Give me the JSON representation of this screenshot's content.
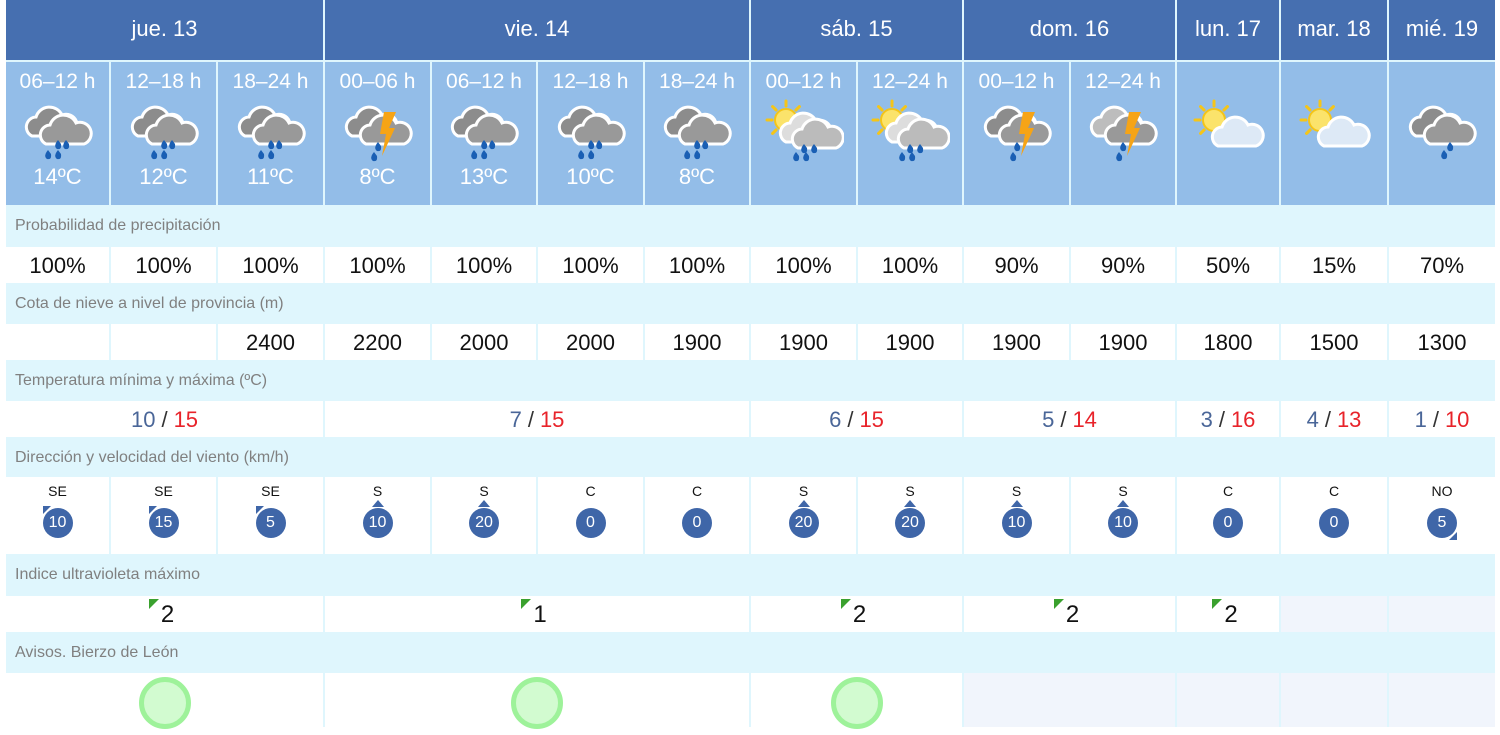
{
  "days": [
    {
      "label": "jue. 13",
      "span": 3,
      "tmin": "10",
      "tmax": "15",
      "uv": "2",
      "aviso": true
    },
    {
      "label": "vie. 14",
      "span": 4,
      "tmin": "7",
      "tmax": "15",
      "uv": "1",
      "aviso": true
    },
    {
      "label": "sáb. 15",
      "span": 2,
      "tmin": "6",
      "tmax": "15",
      "uv": "2",
      "aviso": true
    },
    {
      "label": "dom. 16",
      "span": 2,
      "tmin": "5",
      "tmax": "14",
      "uv": "2",
      "aviso": false
    },
    {
      "label": "lun. 17",
      "span": 1,
      "tmin": "3",
      "tmax": "16",
      "uv": "2",
      "aviso": false
    },
    {
      "label": "mar. 18",
      "span": 1,
      "tmin": "4",
      "tmax": "13",
      "uv": "",
      "aviso": false
    },
    {
      "label": "mié. 19",
      "span": 1,
      "tmin": "1",
      "tmax": "10",
      "uv": "",
      "aviso": false
    }
  ],
  "slots": [
    {
      "time": "06–12 h",
      "icon": "cloud-rain-icon",
      "temp": "14ºC",
      "prob": "100%",
      "snow": "",
      "wdir": "SE",
      "wspd": "10"
    },
    {
      "time": "12–18 h",
      "icon": "cloud-rain-icon",
      "temp": "12ºC",
      "prob": "100%",
      "snow": "",
      "wdir": "SE",
      "wspd": "15"
    },
    {
      "time": "18–24 h",
      "icon": "cloud-rain-icon",
      "temp": "11ºC",
      "prob": "100%",
      "snow": "2400",
      "wdir": "SE",
      "wspd": "5"
    },
    {
      "time": "00–06 h",
      "icon": "cloud-storm-rain-icon",
      "temp": "8ºC",
      "prob": "100%",
      "snow": "2200",
      "wdir": "S",
      "wspd": "10"
    },
    {
      "time": "06–12 h",
      "icon": "cloud-rain-icon",
      "temp": "13ºC",
      "prob": "100%",
      "snow": "2000",
      "wdir": "S",
      "wspd": "20"
    },
    {
      "time": "12–18 h",
      "icon": "cloud-rain-icon",
      "temp": "10ºC",
      "prob": "100%",
      "snow": "2000",
      "wdir": "C",
      "wspd": "0"
    },
    {
      "time": "18–24 h",
      "icon": "cloud-rain-icon",
      "temp": "8ºC",
      "prob": "100%",
      "snow": "1900",
      "wdir": "C",
      "wspd": "0"
    },
    {
      "time": "00–12 h",
      "icon": "sun-cloud-rain-icon",
      "temp": "",
      "prob": "100%",
      "snow": "1900",
      "wdir": "S",
      "wspd": "20"
    },
    {
      "time": "12–24 h",
      "icon": "sun-cloud-rain-icon",
      "temp": "",
      "prob": "100%",
      "snow": "1900",
      "wdir": "S",
      "wspd": "20"
    },
    {
      "time": "00–12 h",
      "icon": "cloud-storm-rain-icon",
      "temp": "",
      "prob": "90%",
      "snow": "1900",
      "wdir": "S",
      "wspd": "10"
    },
    {
      "time": "12–24 h",
      "icon": "cloud-storm-icon",
      "temp": "",
      "prob": "90%",
      "snow": "1900",
      "wdir": "S",
      "wspd": "10"
    },
    {
      "time": "",
      "icon": "sun-cloud-icon",
      "temp": "",
      "prob": "50%",
      "snow": "1800",
      "wdir": "C",
      "wspd": "0"
    },
    {
      "time": "",
      "icon": "sun-cloud-icon",
      "temp": "",
      "prob": "15%",
      "snow": "1500",
      "wdir": "C",
      "wspd": "0"
    },
    {
      "time": "",
      "icon": "cloud-light-rain-icon",
      "temp": "",
      "prob": "70%",
      "snow": "1300",
      "wdir": "NO",
      "wspd": "5"
    }
  ],
  "labels": {
    "prob": "Probabilidad de precipitación",
    "snow": "Cota de nieve a nivel de provincia (m)",
    "temp": "Temperatura mínima y máxima (ºC)",
    "wind": "Dirección y velocidad del viento (km/h)",
    "uv": "Indice ultravioleta máximo",
    "avisos": "Avisos. Bierzo de León"
  },
  "temp_separator": "/",
  "colors": {
    "header": "#466fb0",
    "slot": "#93bde8",
    "label_bg": "#dff6fd",
    "tmin": "#4a6698",
    "tmax": "#e8232a",
    "uv": "#3aa12e",
    "aviso_green": "#9ef29a"
  }
}
